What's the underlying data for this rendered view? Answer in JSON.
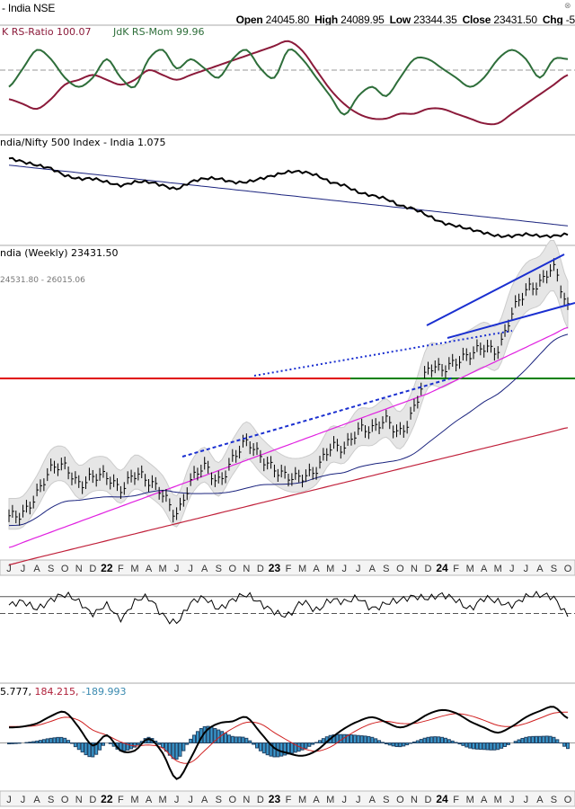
{
  "header": {
    "title": "- India NSE",
    "open_label": "Open",
    "open": "24045.80",
    "high_label": "High",
    "high": "24089.95",
    "low_label": "Low",
    "low": "23344.35",
    "close_label": "Close",
    "close": "23431.50",
    "chg_label": "Chg",
    "chg": "-5"
  },
  "panels": {
    "rrg": {
      "label_ratio": "K RS-Ratio 100.07",
      "label_mom": "JdK RS-Mom 99.96"
    },
    "relative": {
      "label": "ndia/Nifty 500 Index - India 1.075"
    },
    "price": {
      "label": "ndia (Weekly) 23431.50",
      "bands": "24531.80 - 26015.06"
    },
    "macd": {
      "v1": "5.777,",
      "v2": "184.215,",
      "v3": "-189.993"
    }
  },
  "colors": {
    "ratio": "#8b1a3a",
    "mom": "#2e6e3a",
    "price": "#000000",
    "ma_short": "#1a237e",
    "ma_mid": "#e020e0",
    "ma_long": "#c0203a",
    "resistance": "#e00000",
    "support": "#008000",
    "trend": "#1a2fd0",
    "macd_hist": "#3a9ad0"
  },
  "chart_data": {
    "type": "line",
    "x_ticks": [
      "J",
      "J",
      "A",
      "S",
      "O",
      "N",
      "D",
      "22",
      "F",
      "M",
      "A",
      "M",
      "J",
      "J",
      "A",
      "S",
      "O",
      "N",
      "D",
      "23",
      "F",
      "M",
      "A",
      "M",
      "J",
      "J",
      "A",
      "S",
      "O",
      "N",
      "D",
      "24",
      "F",
      "M",
      "A",
      "M",
      "J",
      "J",
      "A",
      "S",
      "O"
    ],
    "price_monthly_close": [
      15700,
      15800,
      16600,
      17600,
      17700,
      17000,
      17300,
      17300,
      16800,
      17400,
      17100,
      16600,
      15800,
      17100,
      17700,
      17100,
      18000,
      18700,
      18100,
      17600,
      17300,
      17300,
      17600,
      18500,
      18500,
      19200,
      19250,
      19600,
      19100,
      20100,
      21700,
      21700,
      22000,
      22300,
      22600,
      22500,
      24000,
      24900,
      25200,
      25800,
      24200
    ],
    "price_ylim": [
      14000,
      26500
    ],
    "rs_ratio": [
      99,
      98.5,
      98,
      99,
      100.5,
      101,
      101.5,
      101,
      100.5,
      101,
      102,
      101.5,
      101,
      101.5,
      102,
      102.5,
      103,
      103.5,
      104,
      104.5,
      105,
      104,
      102,
      100,
      98.5,
      97.5,
      97,
      97,
      97.5,
      97.5,
      98,
      98,
      97.5,
      97,
      96.5,
      96.5,
      97.5,
      98.5,
      99.5,
      100.5,
      101.5
    ],
    "rs_mom": [
      99.5,
      100.5,
      101.5,
      101,
      100,
      99.5,
      100,
      101,
      100,
      99.5,
      101,
      101.5,
      100.5,
      101,
      100.5,
      100,
      101,
      101.5,
      100.5,
      100,
      101.5,
      101,
      100,
      99,
      98,
      99,
      99.5,
      99,
      100,
      101,
      101,
      100.5,
      100,
      99.5,
      100,
      101,
      101.5,
      101,
      100,
      101,
      101
    ],
    "relative_strength": [
      1.3,
      1.29,
      1.28,
      1.27,
      1.25,
      1.24,
      1.24,
      1.23,
      1.22,
      1.23,
      1.23,
      1.22,
      1.21,
      1.23,
      1.24,
      1.24,
      1.23,
      1.23,
      1.24,
      1.25,
      1.26,
      1.26,
      1.25,
      1.23,
      1.22,
      1.2,
      1.19,
      1.18,
      1.16,
      1.15,
      1.13,
      1.11,
      1.1,
      1.09,
      1.08,
      1.07,
      1.07,
      1.075,
      1.07,
      1.07,
      1.075
    ],
    "rs_ylim": [
      1.05,
      1.33
    ],
    "oscillator": [
      0.0,
      0.02,
      -0.02,
      0.03,
      0.06,
      0.02,
      -0.05,
      0.0,
      -0.08,
      0.02,
      0.04,
      -0.06,
      -0.1,
      0.01,
      0.04,
      -0.02,
      0.03,
      0.06,
      0.01,
      -0.04,
      -0.06,
      0.02,
      -0.03,
      0.03,
      0.02,
      0.04,
      -0.02,
      0.01,
      0.03,
      0.05,
      0.04,
      0.06,
      0.03,
      -0.02,
      0.04,
      0.02,
      0.0,
      0.05,
      0.06,
      0.04,
      -0.06
    ],
    "osc_ylim": [
      -0.25,
      0.15
    ],
    "macd": [
      300,
      320,
      380,
      520,
      600,
      300,
      -50,
      150,
      -150,
      -150,
      80,
      -200,
      -700,
      -300,
      200,
      380,
      420,
      500,
      200,
      -100,
      -200,
      -250,
      -150,
      80,
      280,
      420,
      500,
      400,
      300,
      400,
      560,
      640,
      580,
      420,
      300,
      200,
      320,
      500,
      620,
      700,
      480
    ],
    "macd_signal": [
      320,
      320,
      340,
      420,
      500,
      440,
      250,
      150,
      20,
      -60,
      -40,
      -100,
      -350,
      -380,
      -150,
      100,
      280,
      400,
      370,
      200,
      40,
      -100,
      -160,
      -80,
      100,
      260,
      380,
      420,
      380,
      380,
      440,
      520,
      570,
      530,
      440,
      340,
      320,
      380,
      480,
      580,
      600
    ],
    "macd_ylim": [
      -900,
      900
    ]
  }
}
